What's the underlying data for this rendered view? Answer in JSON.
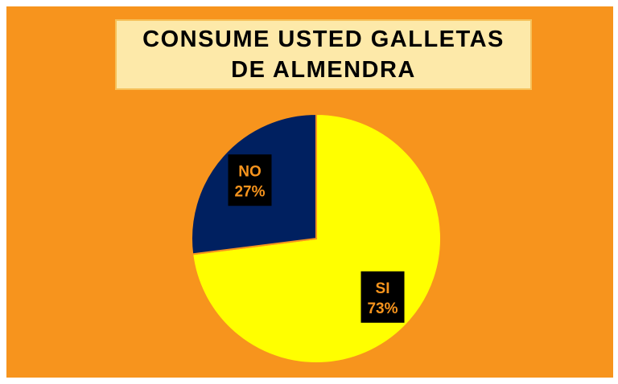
{
  "chart_data": {
    "type": "pie",
    "title": "CONSUME USTED GALLETAS DE ALMENDRA",
    "categories": [
      "SI",
      "NO"
    ],
    "values": [
      73,
      27
    ],
    "value_labels": [
      "73%",
      "27%"
    ],
    "colors": [
      "#ffff00",
      "#002060"
    ]
  }
}
